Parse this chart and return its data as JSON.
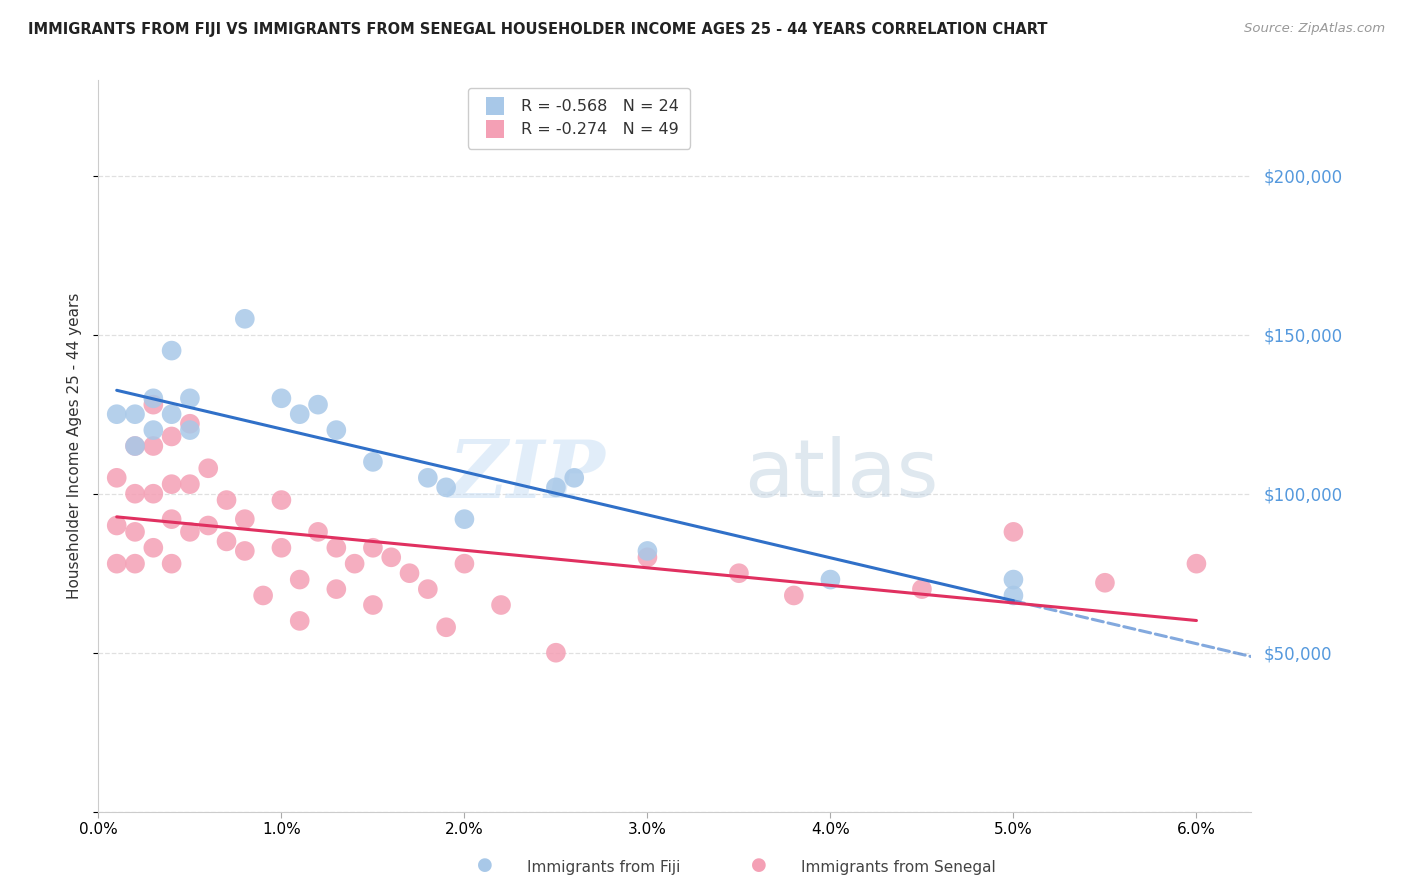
{
  "title": "IMMIGRANTS FROM FIJI VS IMMIGRANTS FROM SENEGAL HOUSEHOLDER INCOME AGES 25 - 44 YEARS CORRELATION CHART",
  "source": "Source: ZipAtlas.com",
  "ylabel": "Householder Income Ages 25 - 44 years",
  "right_yticks": [
    0,
    50000,
    100000,
    150000,
    200000
  ],
  "right_yticklabels": [
    "",
    "$50,000",
    "$100,000",
    "$150,000",
    "$200,000"
  ],
  "ylim": [
    0,
    230000
  ],
  "xlim": [
    0.0,
    0.063
  ],
  "fiji_R": -0.568,
  "fiji_N": 24,
  "senegal_R": -0.274,
  "senegal_N": 49,
  "fiji_color": "#a8c8e8",
  "senegal_color": "#f4a0b5",
  "fiji_line_color": "#3070c8",
  "senegal_line_color": "#e03060",
  "fiji_scatter_x": [
    0.001,
    0.002,
    0.002,
    0.003,
    0.003,
    0.004,
    0.004,
    0.005,
    0.005,
    0.008,
    0.01,
    0.011,
    0.012,
    0.013,
    0.015,
    0.018,
    0.019,
    0.02,
    0.025,
    0.026,
    0.03,
    0.04,
    0.05,
    0.05
  ],
  "fiji_scatter_y": [
    125000,
    125000,
    115000,
    130000,
    120000,
    145000,
    125000,
    130000,
    120000,
    155000,
    130000,
    125000,
    128000,
    120000,
    110000,
    105000,
    102000,
    92000,
    102000,
    105000,
    82000,
    73000,
    73000,
    68000
  ],
  "senegal_scatter_x": [
    0.001,
    0.001,
    0.001,
    0.002,
    0.002,
    0.002,
    0.002,
    0.003,
    0.003,
    0.003,
    0.003,
    0.004,
    0.004,
    0.004,
    0.004,
    0.005,
    0.005,
    0.005,
    0.006,
    0.006,
    0.007,
    0.007,
    0.008,
    0.008,
    0.009,
    0.01,
    0.01,
    0.011,
    0.011,
    0.012,
    0.013,
    0.013,
    0.014,
    0.015,
    0.015,
    0.016,
    0.017,
    0.018,
    0.019,
    0.02,
    0.022,
    0.025,
    0.03,
    0.035,
    0.038,
    0.045,
    0.05,
    0.055,
    0.06
  ],
  "senegal_scatter_y": [
    105000,
    90000,
    78000,
    115000,
    100000,
    88000,
    78000,
    128000,
    115000,
    100000,
    83000,
    118000,
    103000,
    92000,
    78000,
    122000,
    103000,
    88000,
    108000,
    90000,
    98000,
    85000,
    92000,
    82000,
    68000,
    98000,
    83000,
    73000,
    60000,
    88000,
    83000,
    70000,
    78000,
    83000,
    65000,
    80000,
    75000,
    70000,
    58000,
    78000,
    65000,
    50000,
    80000,
    75000,
    68000,
    70000,
    88000,
    72000,
    78000
  ],
  "watermark_zip": "ZIP",
  "watermark_atlas": "atlas",
  "background_color": "#ffffff",
  "grid_color": "#e0e0e0",
  "xticks": [
    0.0,
    0.01,
    0.02,
    0.03,
    0.04,
    0.05,
    0.06
  ]
}
